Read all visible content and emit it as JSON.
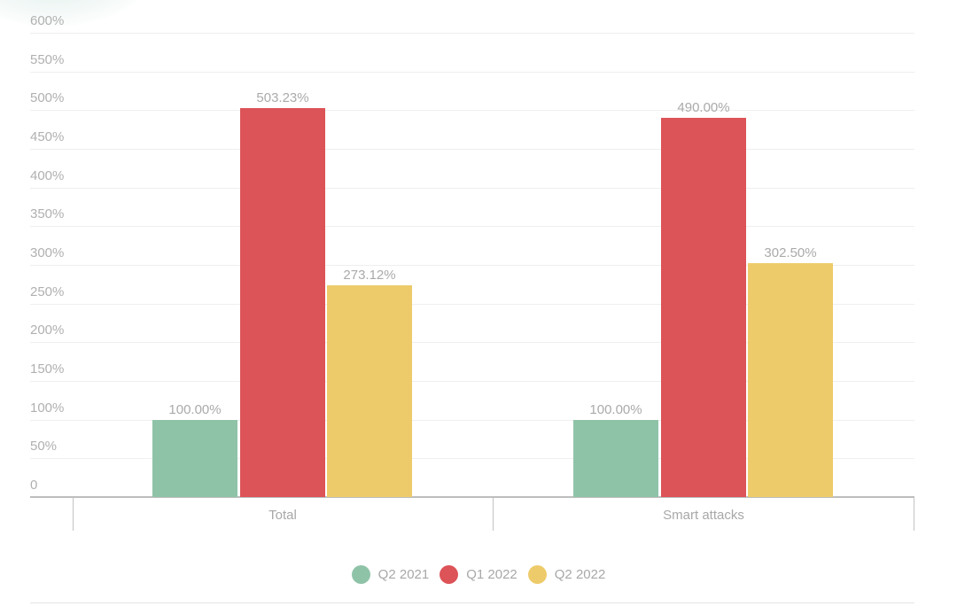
{
  "chart_data": {
    "type": "bar",
    "title": "",
    "xlabel": "",
    "ylabel": "",
    "ylim": [
      0,
      600
    ],
    "grid": true,
    "legend_position": "bottom",
    "categories": [
      "Total",
      "Smart attacks"
    ],
    "series": [
      {
        "name": "Q2 2021",
        "color": "#8fc3a8",
        "values": [
          100.0,
          100.0
        ],
        "labels": [
          "100.00%",
          "100.00%"
        ]
      },
      {
        "name": "Q1 2022",
        "color": "#dc5358",
        "values": [
          503.23,
          490.0
        ],
        "labels": [
          "503.23%",
          "490.00%"
        ]
      },
      {
        "name": "Q2 2022",
        "color": "#eecb6a",
        "values": [
          273.12,
          302.5
        ],
        "labels": [
          "273.12%",
          "302.50%"
        ]
      }
    ],
    "y_ticks": [
      "600%",
      "550%",
      "500%",
      "450%",
      "400%",
      "350%",
      "300%",
      "250%",
      "200%",
      "150%",
      "100%",
      "50%",
      "0"
    ]
  },
  "legend": [
    {
      "label": "Q2 2021",
      "color": "#8fc3a8"
    },
    {
      "label": "Q1 2022",
      "color": "#dc5358"
    },
    {
      "label": "Q2 2022",
      "color": "#eecb6a"
    }
  ]
}
